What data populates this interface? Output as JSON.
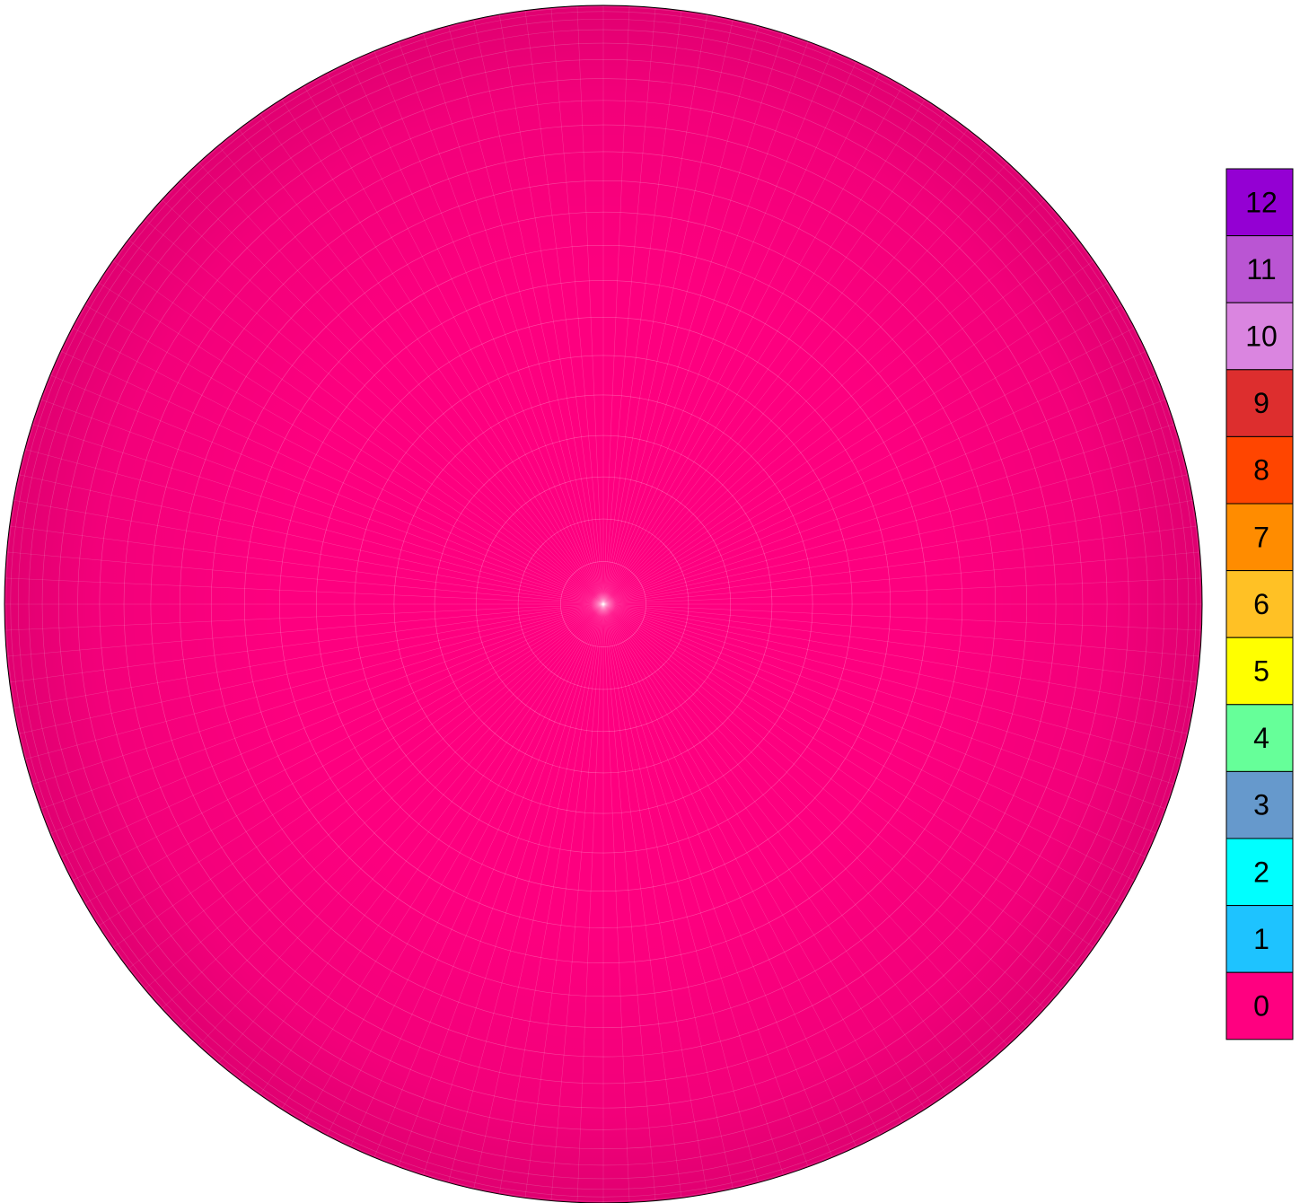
{
  "chart_data": {
    "type": "heatmap",
    "projection": "polar-grid",
    "title": "",
    "grid": true,
    "grid_line_color": "#ffffff",
    "shading": "darker toward rim",
    "cells": {
      "rings": 22,
      "sectors": 144,
      "uniform_value": 0
    },
    "legend": {
      "placement": "right",
      "type": "discrete",
      "entries": [
        {
          "label": "12",
          "value": 12,
          "color": "#9400D3"
        },
        {
          "label": "11",
          "value": 11,
          "color": "#BA55D3"
        },
        {
          "label": "10",
          "value": 10,
          "color": "#DA85E0"
        },
        {
          "label": "9",
          "value": 9,
          "color": "#DD2E2E"
        },
        {
          "label": "8",
          "value": 8,
          "color": "#FF4500"
        },
        {
          "label": "7",
          "value": 7,
          "color": "#FF8C00"
        },
        {
          "label": "6",
          "value": 6,
          "color": "#FFC125"
        },
        {
          "label": "5",
          "value": 5,
          "color": "#FFFF00"
        },
        {
          "label": "4",
          "value": 4,
          "color": "#66FF99"
        },
        {
          "label": "3",
          "value": 3,
          "color": "#6699CC"
        },
        {
          "label": "2",
          "value": 2,
          "color": "#00FFFF"
        },
        {
          "label": "1",
          "value": 1,
          "color": "#1EC3FF"
        },
        {
          "label": "0",
          "value": 0,
          "color": "#FF0080"
        }
      ]
    }
  }
}
